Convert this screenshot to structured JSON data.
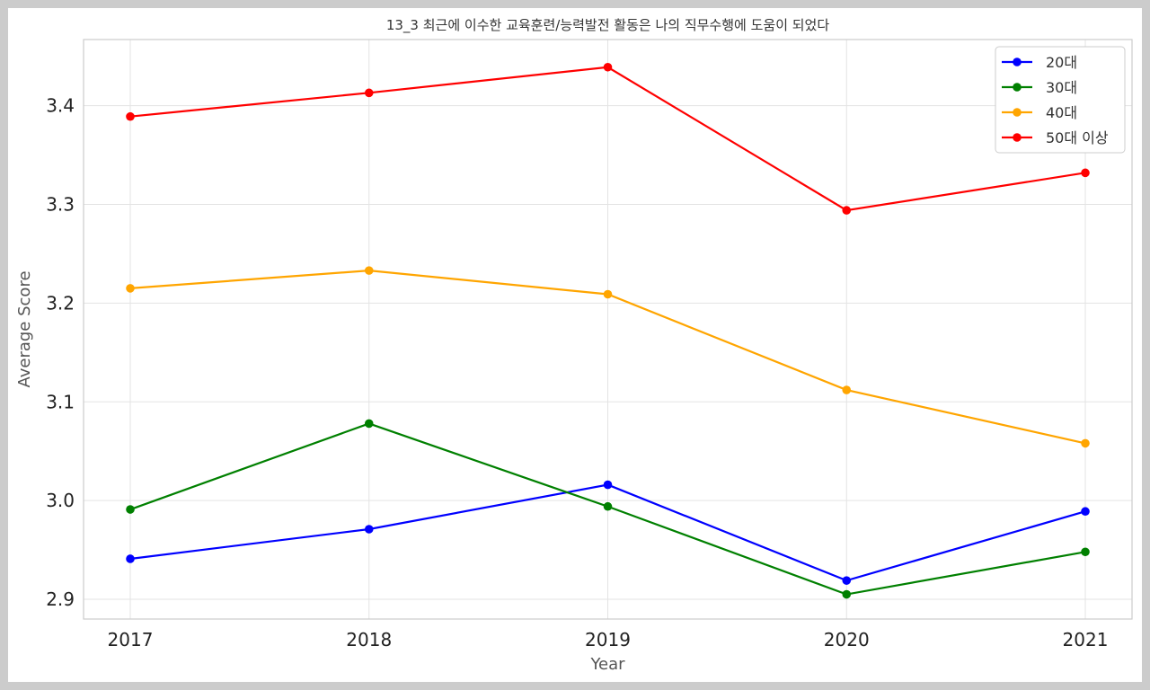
{
  "chart_data": {
    "type": "line",
    "title": "13_3 최근에 이수한 교육훈련/능력발전 활동은 나의 직무수행에 도움이 되었다",
    "xlabel": "Year",
    "ylabel": "Average Score",
    "x": [
      "2017",
      "2018",
      "2019",
      "2020",
      "2021"
    ],
    "ylim": [
      2.88,
      3.467
    ],
    "yticks": [
      "2.9",
      "3.0",
      "3.1",
      "3.2",
      "3.3",
      "3.4"
    ],
    "grid": true,
    "legend_position": "top-right",
    "series": [
      {
        "name": "20대",
        "color": "#0000ff",
        "values": [
          2.941,
          2.971,
          3.016,
          2.919,
          2.989
        ]
      },
      {
        "name": "30대",
        "color": "#008000",
        "values": [
          2.991,
          3.078,
          2.994,
          2.905,
          2.948
        ]
      },
      {
        "name": "40대",
        "color": "#ffa500",
        "values": [
          3.215,
          3.233,
          3.209,
          3.112,
          3.058
        ]
      },
      {
        "name": "50대 이상",
        "color": "#ff0000",
        "values": [
          3.389,
          3.413,
          3.439,
          3.294,
          3.332
        ]
      }
    ]
  }
}
